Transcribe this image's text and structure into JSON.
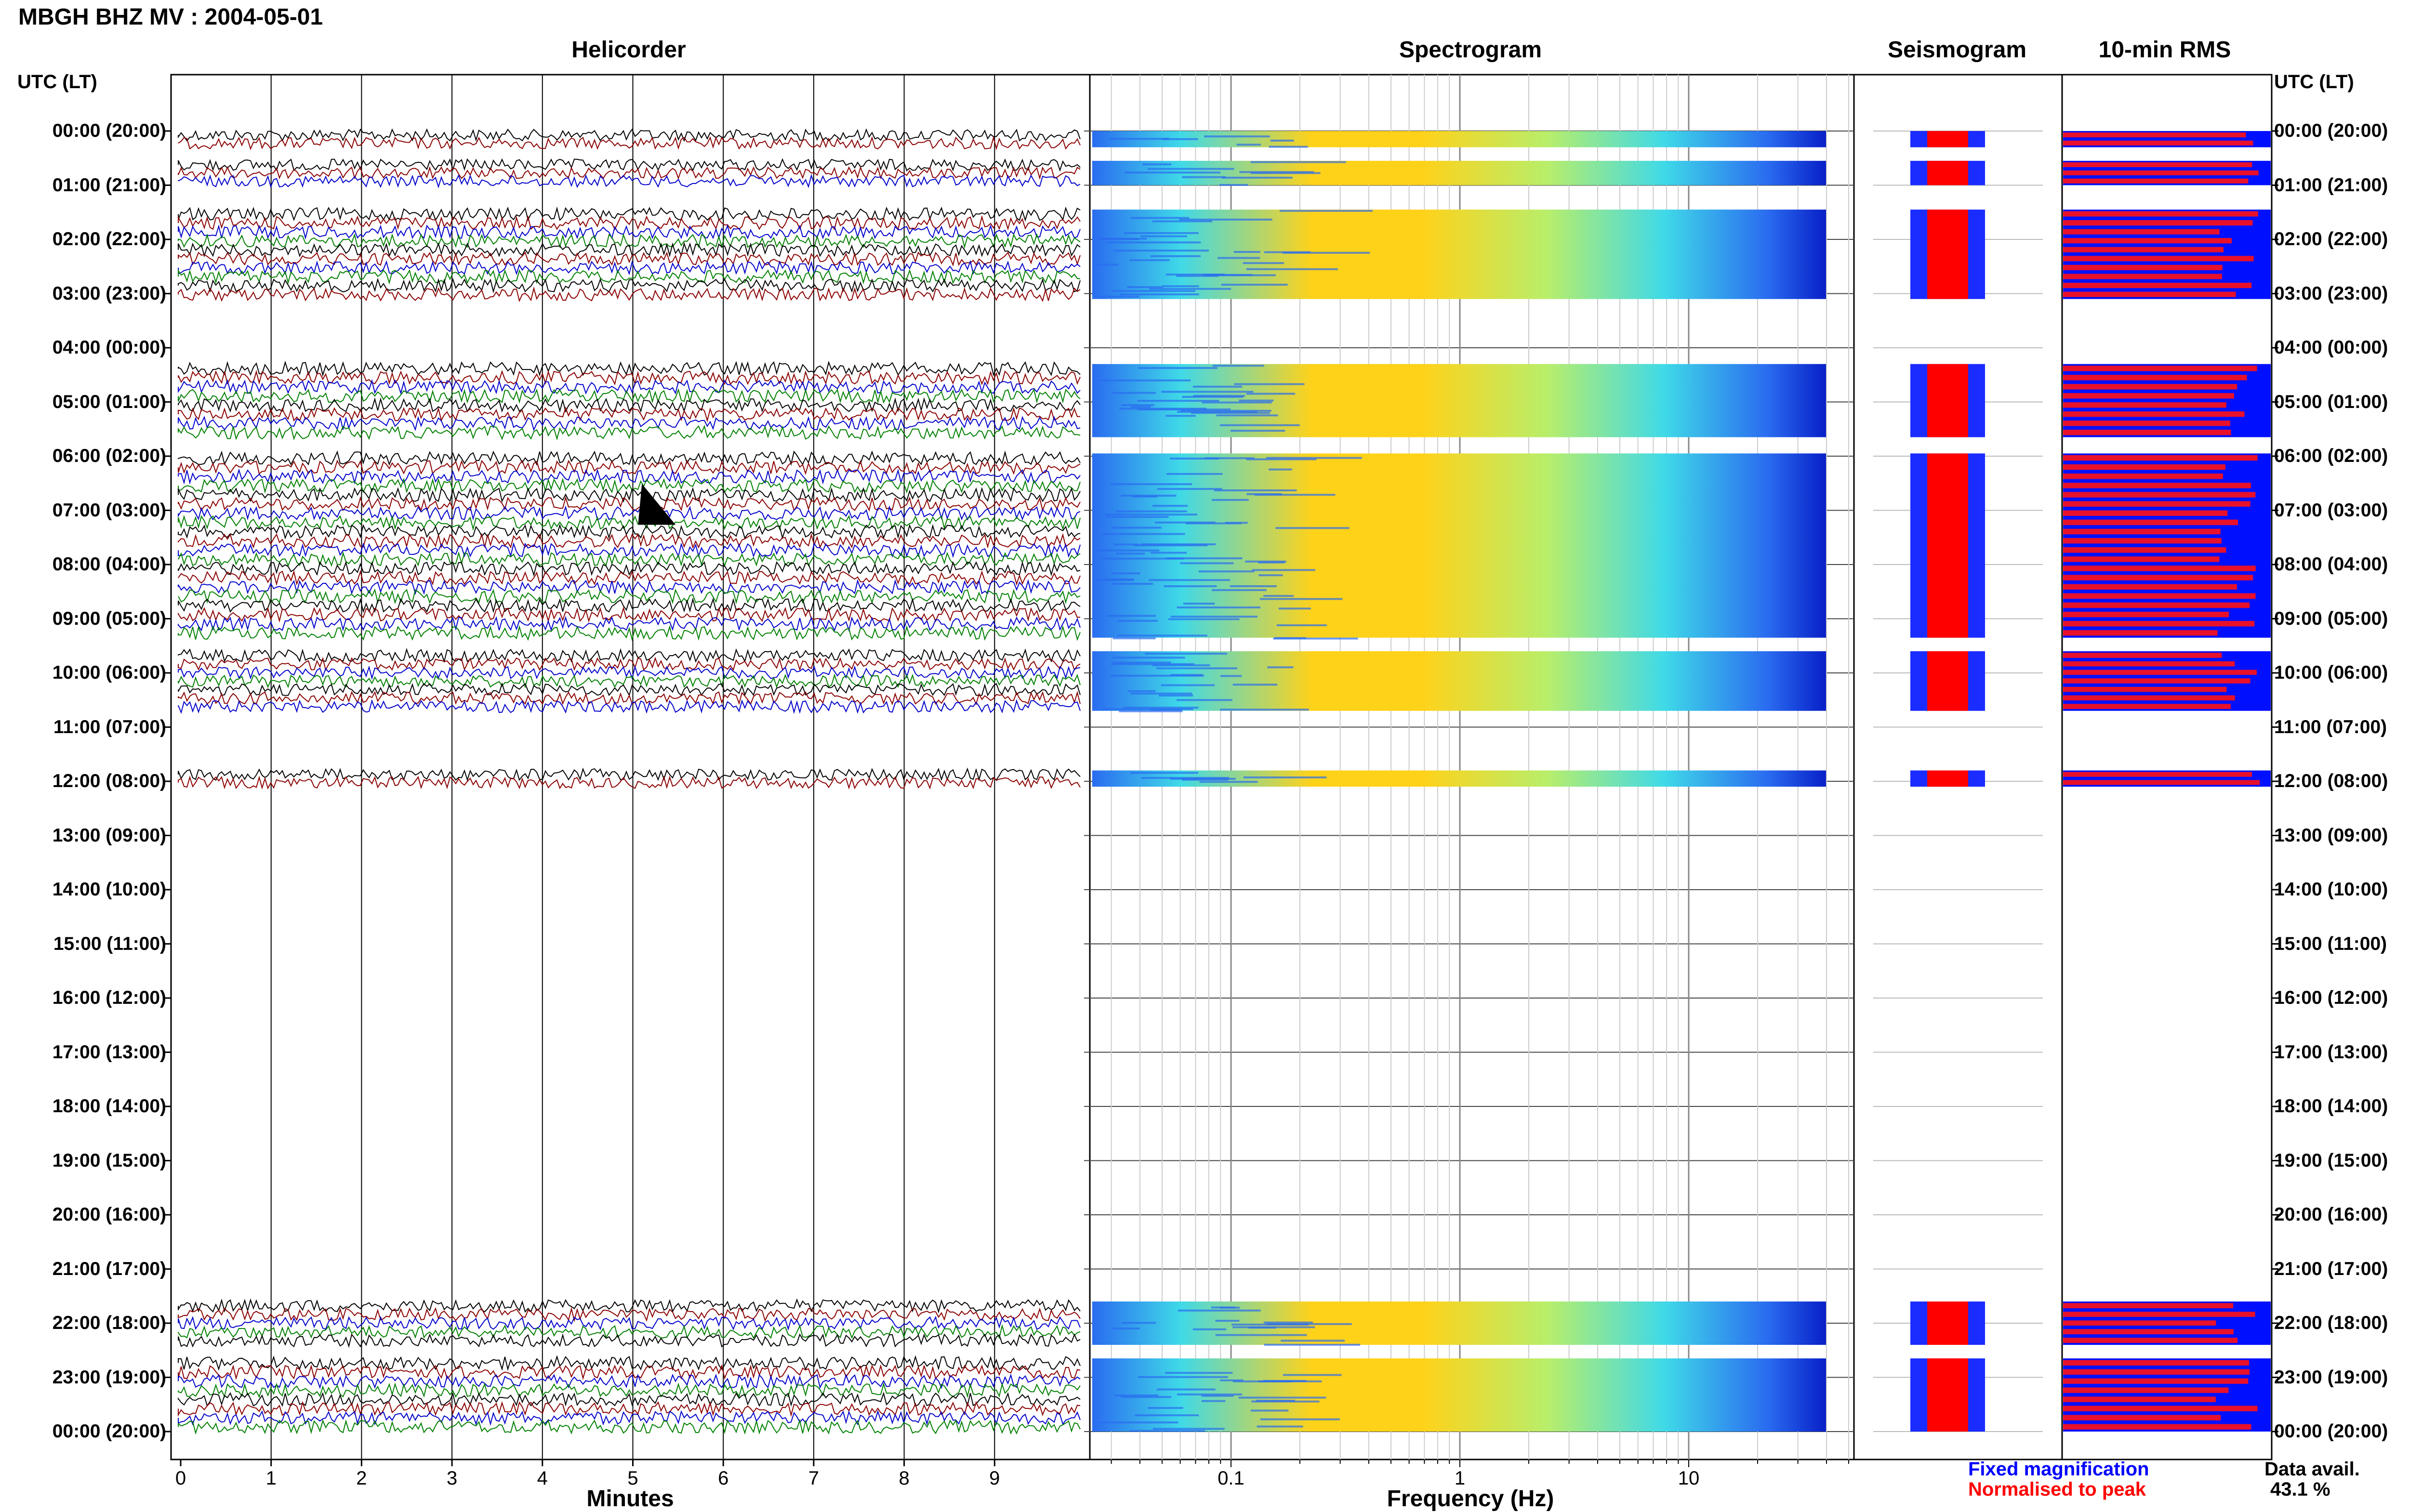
{
  "header": {
    "title": "MBGH BHZ MV : 2004-05-01"
  },
  "panels": {
    "helicorder": "Helicorder",
    "spectrogram": "Spectrogram",
    "seismogram": "Seismogram",
    "rms": "10-min RMS"
  },
  "axis": {
    "left_header": "UTC (LT)",
    "right_header": "UTC (LT)",
    "helicorder_xlabel": "Minutes",
    "spectrogram_xlabel": "Frequency (Hz)"
  },
  "legend": {
    "fixed": "Fixed magnification",
    "normalised": "Normalised to peak",
    "fixed_color": "#0000ff",
    "normalised_color": "#ff0000",
    "data_avail_label": "Data avail.",
    "data_avail_value": "43.1 %"
  },
  "colors": {
    "trace_cycle": [
      "#000000",
      "#8b0000",
      "#0000cc",
      "#008000"
    ],
    "rms_bar": "#e8102a",
    "rms_bg": "#0010ff",
    "spec_low": "#2a6cf0",
    "spec_mid": "#3fd9e8",
    "spec_high": "#ffd21a"
  },
  "chart_data": {
    "type": "helicorder",
    "hour_labels": [
      "00:00 (20:00)",
      "01:00 (21:00)",
      "02:00 (22:00)",
      "03:00 (23:00)",
      "04:00 (00:00)",
      "05:00 (01:00)",
      "06:00 (02:00)",
      "07:00 (03:00)",
      "08:00 (04:00)",
      "09:00 (05:00)",
      "10:00 (06:00)",
      "11:00 (07:00)",
      "12:00 (08:00)",
      "13:00 (09:00)",
      "14:00 (10:00)",
      "15:00 (11:00)",
      "16:00 (12:00)",
      "17:00 (13:00)",
      "18:00 (14:00)",
      "19:00 (15:00)",
      "20:00 (16:00)",
      "21:00 (17:00)",
      "22:00 (18:00)",
      "23:00 (19:00)",
      "00:00 (20:00)"
    ],
    "minute_ticks": [
      "0",
      "1",
      "2",
      "3",
      "4",
      "5",
      "6",
      "7",
      "8",
      "9"
    ],
    "freq_ticks": [
      "0.1",
      "1",
      "10"
    ],
    "data_blocks": [
      {
        "start_hour": 0.0,
        "end_hour": 0.3
      },
      {
        "start_hour": 0.55,
        "end_hour": 1.0
      },
      {
        "start_hour": 1.45,
        "end_hour": 3.1
      },
      {
        "start_hour": 4.3,
        "end_hour": 5.65
      },
      {
        "start_hour": 5.95,
        "end_hour": 9.35
      },
      {
        "start_hour": 9.6,
        "end_hour": 10.7
      },
      {
        "start_hour": 11.8,
        "end_hour": 12.1
      },
      {
        "start_hour": 21.6,
        "end_hour": 22.4
      },
      {
        "start_hour": 22.65,
        "end_hour": 24.0
      }
    ],
    "event_marker": {
      "hour": 7.0,
      "minute": 5.1
    },
    "data_availability_percent": 43.1
  }
}
